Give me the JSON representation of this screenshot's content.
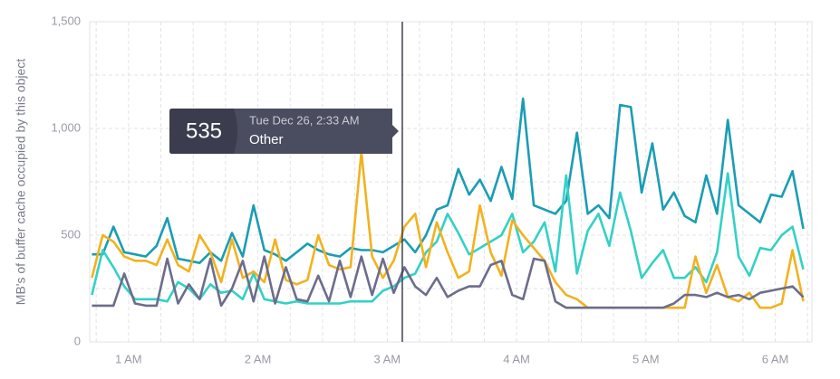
{
  "chart_data": {
    "type": "line",
    "ylabel": "MB's of buffer cache occupied by this object",
    "x": [
      43,
      48,
      53,
      58,
      63,
      68,
      73,
      78,
      83,
      88,
      93,
      98,
      103,
      108,
      113,
      118,
      123,
      128,
      133,
      138,
      143,
      148,
      153,
      158,
      163,
      168,
      173,
      178,
      183,
      188,
      193,
      198,
      203,
      208,
      213,
      218,
      223,
      228,
      233,
      238,
      243,
      248,
      253,
      258,
      263,
      268,
      273,
      278,
      283,
      288,
      293,
      298,
      303,
      308,
      313,
      318,
      323,
      328,
      333,
      338,
      343,
      348,
      353,
      358,
      363,
      368,
      373
    ],
    "series": [
      {
        "color": "#1a9db4",
        "values": [
          410,
          410,
          540,
          420,
          410,
          400,
          450,
          580,
          390,
          380,
          370,
          420,
          380,
          510,
          400,
          640,
          430,
          410,
          380,
          420,
          460,
          430,
          410,
          400,
          440,
          430,
          430,
          420,
          450,
          480,
          420,
          500,
          620,
          640,
          810,
          690,
          760,
          660,
          820,
          670,
          1140,
          640,
          620,
          600,
          660,
          980,
          600,
          640,
          580,
          1110,
          1100,
          700,
          930,
          620,
          700,
          590,
          560,
          780,
          600,
          1040,
          640,
          600,
          560,
          690,
          680,
          800,
          530
        ]
      },
      {
        "color": "#33d1c6",
        "values": [
          220,
          430,
          350,
          260,
          200,
          200,
          200,
          190,
          280,
          250,
          200,
          270,
          230,
          240,
          200,
          320,
          200,
          190,
          180,
          190,
          180,
          180,
          180,
          180,
          190,
          190,
          190,
          240,
          260,
          300,
          320,
          420,
          470,
          600,
          510,
          410,
          440,
          470,
          500,
          600,
          420,
          470,
          560,
          330,
          780,
          320,
          520,
          600,
          450,
          700,
          520,
          300,
          370,
          430,
          300,
          300,
          350,
          280,
          420,
          790,
          400,
          310,
          440,
          430,
          500,
          540,
          340
        ]
      },
      {
        "color": "#f2b21f",
        "values": [
          300,
          500,
          470,
          400,
          380,
          380,
          360,
          480,
          360,
          330,
          500,
          420,
          280,
          480,
          300,
          330,
          280,
          480,
          290,
          270,
          290,
          500,
          360,
          340,
          350,
          890,
          400,
          300,
          380,
          540,
          600,
          350,
          560,
          420,
          300,
          330,
          640,
          420,
          310,
          570,
          500,
          440,
          380,
          280,
          220,
          200,
          160,
          160,
          160,
          160,
          160,
          160,
          160,
          160,
          160,
          160,
          400,
          230,
          360,
          210,
          190,
          230,
          160,
          160,
          180,
          430,
          190
        ]
      },
      {
        "color": "#6c6d8c",
        "values": [
          170,
          170,
          170,
          320,
          180,
          170,
          170,
          390,
          180,
          270,
          200,
          390,
          170,
          250,
          380,
          190,
          400,
          180,
          350,
          200,
          190,
          310,
          190,
          380,
          210,
          400,
          220,
          390,
          230,
          350,
          260,
          220,
          300,
          210,
          240,
          260,
          260,
          360,
          380,
          220,
          200,
          390,
          380,
          190,
          160,
          160,
          160,
          160,
          160,
          160,
          160,
          160,
          160,
          160,
          180,
          220,
          220,
          210,
          230,
          210,
          220,
          200,
          230,
          240,
          250,
          260,
          210
        ]
      }
    ],
    "xlim": [
      42,
      377
    ],
    "xticks": [
      {
        "value": 60,
        "label": "1 AM"
      },
      {
        "value": 120,
        "label": "2 AM"
      },
      {
        "value": 180,
        "label": "3 AM"
      },
      {
        "value": 240,
        "label": "4 AM"
      },
      {
        "value": 300,
        "label": "5 AM"
      },
      {
        "value": 360,
        "label": "6 AM"
      }
    ],
    "ylim": [
      0,
      1500
    ],
    "yticks": [
      0,
      500,
      {
        "value": 1000,
        "label": "1,000"
      },
      {
        "value": 1500,
        "label": "1,500"
      }
    ],
    "grid": true,
    "tooltip": {
      "value": 535,
      "time": "Tue Dec 26, 2:33 AM",
      "name": "Other",
      "x": 187
    }
  }
}
